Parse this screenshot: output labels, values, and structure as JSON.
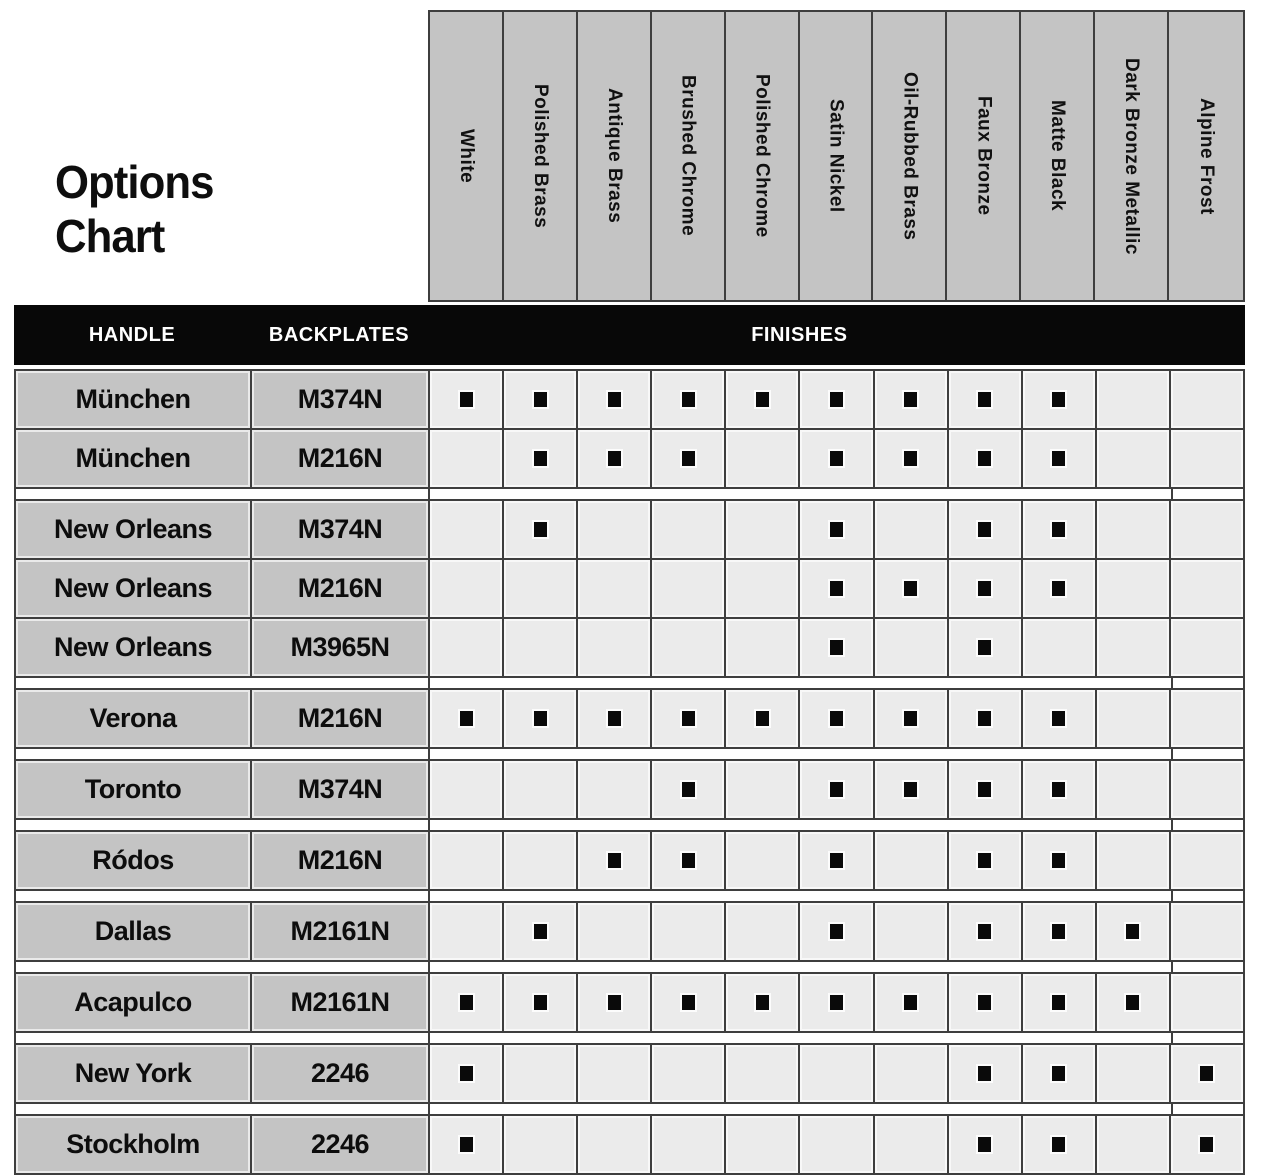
{
  "page_title": {
    "line1": "Options",
    "line2": "Chart"
  },
  "header_bar": {
    "handle": "HANDLE",
    "backplates": "BACKPLATES",
    "finishes": "FINISHES"
  },
  "finish_columns": [
    "White",
    "Polished Brass",
    "Antique Brass",
    "Brushed Chrome",
    "Polished Chrome",
    "Satin Nickel",
    "Oil-Rubbed Brass",
    "Faux Bronze",
    "Matte Black",
    "Dark Bronze Metallic",
    "Alpine Frost"
  ],
  "marker_glyph": "■",
  "groups": [
    {
      "rows": [
        {
          "handle": "München",
          "backplate": "M374N",
          "finishes": [
            1,
            1,
            1,
            1,
            1,
            1,
            1,
            1,
            1,
            0,
            0
          ]
        },
        {
          "handle": "München",
          "backplate": "M216N",
          "finishes": [
            0,
            1,
            1,
            1,
            0,
            1,
            1,
            1,
            1,
            0,
            0
          ]
        }
      ]
    },
    {
      "rows": [
        {
          "handle": "New Orleans",
          "backplate": "M374N",
          "finishes": [
            0,
            1,
            0,
            0,
            0,
            1,
            0,
            1,
            1,
            0,
            0
          ]
        },
        {
          "handle": "New Orleans",
          "backplate": "M216N",
          "finishes": [
            0,
            0,
            0,
            0,
            0,
            1,
            1,
            1,
            1,
            0,
            0
          ]
        },
        {
          "handle": "New Orleans",
          "backplate": "M3965N",
          "finishes": [
            0,
            0,
            0,
            0,
            0,
            1,
            0,
            1,
            0,
            0,
            0
          ]
        }
      ]
    },
    {
      "rows": [
        {
          "handle": "Verona",
          "backplate": "M216N",
          "finishes": [
            1,
            1,
            1,
            1,
            1,
            1,
            1,
            1,
            1,
            0,
            0
          ]
        }
      ]
    },
    {
      "rows": [
        {
          "handle": "Toronto",
          "backplate": "M374N",
          "finishes": [
            0,
            0,
            0,
            1,
            0,
            1,
            1,
            1,
            1,
            0,
            0
          ]
        }
      ]
    },
    {
      "rows": [
        {
          "handle": "Ródos",
          "backplate": "M216N",
          "finishes": [
            0,
            0,
            1,
            1,
            0,
            1,
            0,
            1,
            1,
            0,
            0
          ]
        }
      ]
    },
    {
      "rows": [
        {
          "handle": "Dallas",
          "backplate": "M2161N",
          "finishes": [
            0,
            1,
            0,
            0,
            0,
            1,
            0,
            1,
            1,
            1,
            0
          ]
        }
      ]
    },
    {
      "rows": [
        {
          "handle": "Acapulco",
          "backplate": "M2161N",
          "finishes": [
            1,
            1,
            1,
            1,
            1,
            1,
            1,
            1,
            1,
            1,
            0
          ]
        }
      ]
    },
    {
      "rows": [
        {
          "handle": "New York",
          "backplate": "2246",
          "finishes": [
            1,
            0,
            0,
            0,
            0,
            0,
            0,
            1,
            1,
            0,
            1
          ]
        }
      ]
    },
    {
      "rows": [
        {
          "handle": "Stockholm",
          "backplate": "2246",
          "finishes": [
            1,
            0,
            0,
            0,
            0,
            0,
            0,
            1,
            1,
            0,
            1
          ]
        }
      ]
    }
  ],
  "colors": {
    "page_bg": "#ffffff",
    "title_color": "#0e0e0e",
    "header_bar_bg": "#080808",
    "header_bar_text": "#ffffff",
    "column_header_bg": "#c4c4c4",
    "name_cell_bg": "#c4c4c4",
    "finish_cell_bg": "#ebebeb",
    "grid_border": "#3e3e3e",
    "marker_color": "#0a0a0a"
  }
}
